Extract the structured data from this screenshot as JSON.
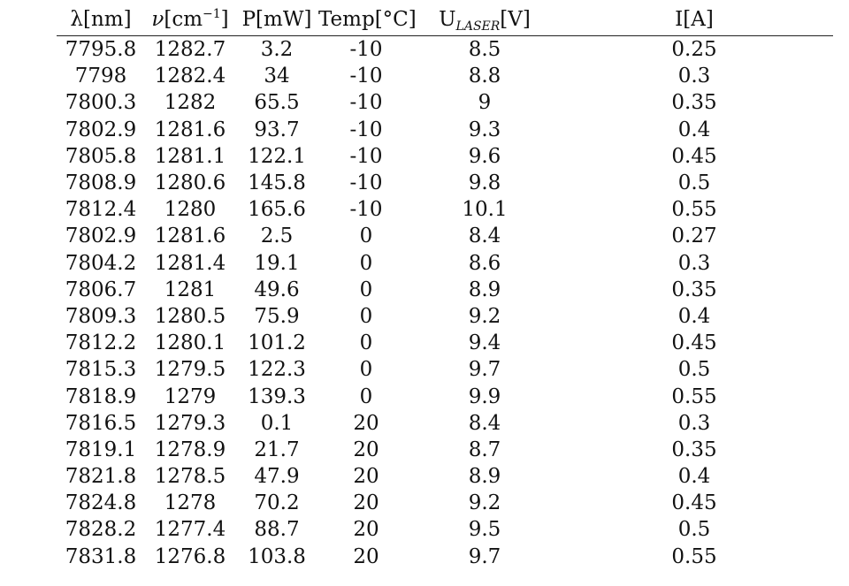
{
  "headers": {
    "lambda": {
      "symbol": "λ",
      "unit": "[nm]"
    },
    "nu": {
      "symbol": "ν",
      "unit_open": "[cm",
      "unit_exp": "−1",
      "unit_close": "]"
    },
    "power": {
      "text": "P[mW]"
    },
    "temp": {
      "text": "Temp[°C]"
    },
    "voltage": {
      "main": "U",
      "sub": "LASER",
      "unit": "[V]"
    },
    "current": {
      "text": "I[A]"
    }
  },
  "rows": [
    [
      "7795.8",
      "1282.7",
      "3.2",
      "-10",
      "8.5",
      "0.25"
    ],
    [
      "7798",
      "1282.4",
      "34",
      "-10",
      "8.8",
      "0.3"
    ],
    [
      "7800.3",
      "1282",
      "65.5",
      "-10",
      "9",
      "0.35"
    ],
    [
      "7802.9",
      "1281.6",
      "93.7",
      "-10",
      "9.3",
      "0.4"
    ],
    [
      "7805.8",
      "1281.1",
      "122.1",
      "-10",
      "9.6",
      "0.45"
    ],
    [
      "7808.9",
      "1280.6",
      "145.8",
      "-10",
      "9.8",
      "0.5"
    ],
    [
      "7812.4",
      "1280",
      "165.6",
      "-10",
      "10.1",
      "0.55"
    ],
    [
      "7802.9",
      "1281.6",
      "2.5",
      "0",
      "8.4",
      "0.27"
    ],
    [
      "7804.2",
      "1281.4",
      "19.1",
      "0",
      "8.6",
      "0.3"
    ],
    [
      "7806.7",
      "1281",
      "49.6",
      "0",
      "8.9",
      "0.35"
    ],
    [
      "7809.3",
      "1280.5",
      "75.9",
      "0",
      "9.2",
      "0.4"
    ],
    [
      "7812.2",
      "1280.1",
      "101.2",
      "0",
      "9.4",
      "0.45"
    ],
    [
      "7815.3",
      "1279.5",
      "122.3",
      "0",
      "9.7",
      "0.5"
    ],
    [
      "7818.9",
      "1279",
      "139.3",
      "0",
      "9.9",
      "0.55"
    ],
    [
      "7816.5",
      "1279.3",
      "0.1",
      "20",
      "8.4",
      "0.3"
    ],
    [
      "7819.1",
      "1278.9",
      "21.7",
      "20",
      "8.7",
      "0.35"
    ],
    [
      "7821.8",
      "1278.5",
      "47.9",
      "20",
      "8.9",
      "0.4"
    ],
    [
      "7824.8",
      "1278",
      "70.2",
      "20",
      "9.2",
      "0.45"
    ],
    [
      "7828.2",
      "1277.4",
      "88.7",
      "20",
      "9.5",
      "0.5"
    ],
    [
      "7831.8",
      "1276.8",
      "103.8",
      "20",
      "9.7",
      "0.55"
    ]
  ]
}
